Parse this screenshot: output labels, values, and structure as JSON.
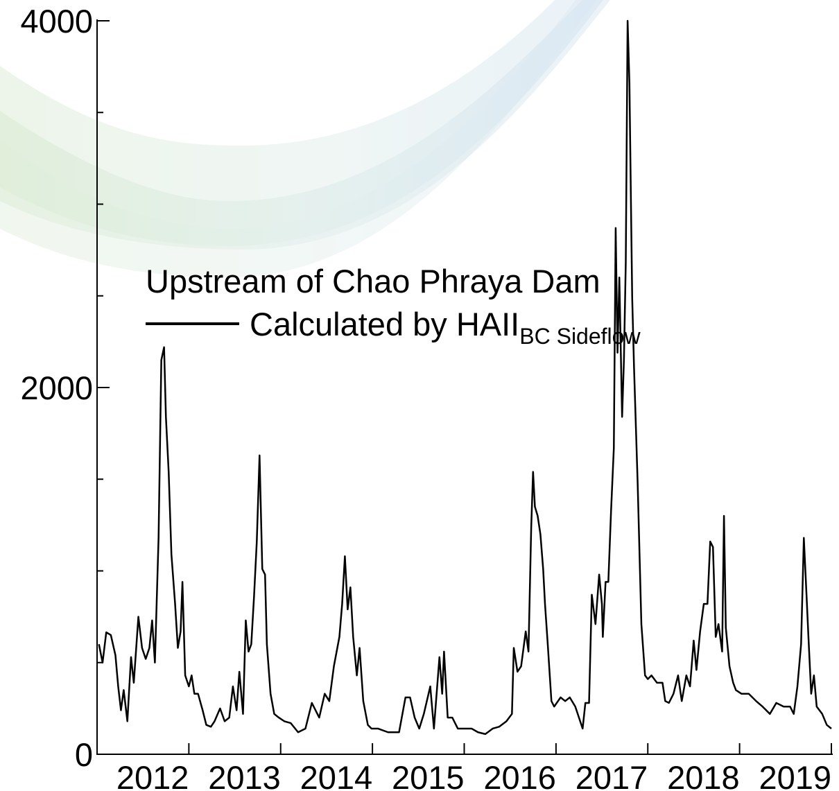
{
  "chart_data": {
    "type": "line",
    "legend_title": "Upstream of Chao Phraya Dam",
    "legend": "upper left",
    "xlim": [
      2011,
      2019
    ],
    "xticks": [
      2012,
      2013,
      2014,
      2015,
      2016,
      2017,
      2018,
      2019
    ],
    "ylim": [
      0,
      4000
    ],
    "yticks": [
      0,
      2000,
      4000
    ],
    "minor_yticks": [
      500,
      1000,
      1500,
      2500,
      3000,
      3500
    ],
    "series": [
      {
        "name": "Calculated by HAII",
        "name_subscript": "BC Sideflow",
        "color": "#000000",
        "x": [
          2011.02,
          2011.06,
          2011.1,
          2011.15,
          2011.2,
          2011.23,
          2011.26,
          2011.29,
          2011.33,
          2011.37,
          2011.4,
          2011.45,
          2011.49,
          2011.53,
          2011.57,
          2011.6,
          2011.63,
          2011.67,
          2011.7,
          2011.73,
          2011.75,
          2011.78,
          2011.81,
          2011.85,
          2011.88,
          2011.91,
          2011.93,
          2011.96,
          2012.0,
          2012.03,
          2012.06,
          2012.1,
          2012.15,
          2012.19,
          2012.24,
          2012.28,
          2012.34,
          2012.39,
          2012.44,
          2012.48,
          2012.52,
          2012.55,
          2012.59,
          2012.62,
          2012.65,
          2012.68,
          2012.71,
          2012.74,
          2012.77,
          2012.8,
          2012.83,
          2012.85,
          2012.89,
          2012.93,
          2012.98,
          2013.04,
          2013.11,
          2013.19,
          2013.27,
          2013.34,
          2013.42,
          2013.48,
          2013.53,
          2013.58,
          2013.64,
          2013.67,
          2013.7,
          2013.73,
          2013.76,
          2013.79,
          2013.83,
          2013.86,
          2013.9,
          2013.95,
          2013.99,
          2014.06,
          2014.17,
          2014.29,
          2014.36,
          2014.41,
          2014.46,
          2014.51,
          2014.56,
          2014.63,
          2014.67,
          2014.73,
          2014.76,
          2014.78,
          2014.82,
          2014.87,
          2014.93,
          2015.0,
          2015.08,
          2015.15,
          2015.23,
          2015.31,
          2015.38,
          2015.46,
          2015.52,
          2015.54,
          2015.58,
          2015.62,
          2015.67,
          2015.7,
          2015.73,
          2015.75,
          2015.77,
          2015.8,
          2015.83,
          2015.86,
          2015.88,
          2015.91,
          2015.95,
          2015.98,
          2016.05,
          2016.1,
          2016.15,
          2016.21,
          2016.25,
          2016.29,
          2016.32,
          2016.36,
          2016.39,
          2016.43,
          2016.47,
          2016.5,
          2016.51,
          2016.54,
          2016.57,
          2016.6,
          2016.63,
          2016.65,
          2016.67,
          2016.69,
          2016.72,
          2016.74,
          2016.76,
          2016.78,
          2016.8,
          2016.82,
          2016.83,
          2016.85,
          2016.89,
          2016.93,
          2016.97,
          2017.0,
          2017.04,
          2017.1,
          2017.16,
          2017.19,
          2017.23,
          2017.28,
          2017.33,
          2017.37,
          2017.42,
          2017.46,
          2017.5,
          2017.53,
          2017.57,
          2017.61,
          2017.65,
          2017.68,
          2017.71,
          2017.74,
          2017.77,
          2017.81,
          2017.83,
          2017.85,
          2017.89,
          2017.93,
          2017.96,
          2018.02,
          2018.1,
          2018.18,
          2018.25,
          2018.33,
          2018.4,
          2018.48,
          2018.55,
          2018.59,
          2018.63,
          2018.67,
          2018.7,
          2018.73,
          2018.75,
          2018.78,
          2018.81,
          2018.84,
          2018.9,
          2018.95,
          2019.0
        ],
        "values": [
          600,
          500,
          665,
          650,
          540,
          370,
          240,
          350,
          180,
          530,
          390,
          750,
          580,
          520,
          580,
          730,
          500,
          1180,
          2150,
          2220,
          1840,
          1540,
          1090,
          820,
          580,
          670,
          940,
          430,
          370,
          430,
          330,
          330,
          240,
          160,
          150,
          180,
          250,
          180,
          200,
          370,
          240,
          450,
          220,
          730,
          560,
          600,
          860,
          1160,
          1630,
          1010,
          980,
          600,
          330,
          220,
          200,
          180,
          170,
          120,
          140,
          280,
          200,
          330,
          290,
          480,
          640,
          820,
          1080,
          790,
          910,
          640,
          430,
          580,
          290,
          160,
          140,
          140,
          120,
          120,
          310,
          310,
          200,
          140,
          220,
          370,
          140,
          530,
          330,
          560,
          200,
          200,
          140,
          140,
          140,
          120,
          110,
          140,
          150,
          180,
          220,
          580,
          450,
          480,
          670,
          560,
          1240,
          1540,
          1350,
          1300,
          1200,
          1010,
          820,
          600,
          290,
          260,
          310,
          290,
          310,
          260,
          200,
          140,
          280,
          280,
          870,
          710,
          980,
          820,
          640,
          940,
          940,
          1330,
          1670,
          2870,
          2190,
          2600,
          1840,
          2150,
          2680,
          4000,
          3660,
          2870,
          2490,
          2110,
          1470,
          710,
          430,
          410,
          430,
          390,
          390,
          290,
          280,
          330,
          430,
          290,
          430,
          370,
          620,
          460,
          670,
          820,
          820,
          1160,
          1130,
          640,
          710,
          560,
          1300,
          690,
          480,
          390,
          350,
          330,
          330,
          290,
          260,
          220,
          280,
          260,
          260,
          220,
          370,
          600,
          1180,
          860,
          640,
          330,
          430,
          260,
          220,
          160,
          140
        ]
      }
    ]
  }
}
